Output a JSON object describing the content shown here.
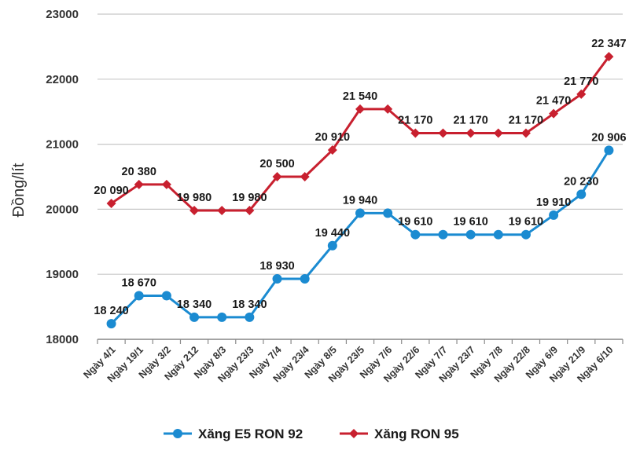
{
  "chart_data": {
    "type": "line",
    "ylabel": "Đồng/lít",
    "xlabel": "",
    "ylim": [
      18000,
      23000
    ],
    "yticks": [
      "18000",
      "19000",
      "20000",
      "21000",
      "22000",
      "23000"
    ],
    "grid": "horizontal",
    "legend_position": "bottom",
    "categories": [
      "Ngày 4/1",
      "Ngày 19/1",
      "Ngày 3/2",
      "Ngày 212",
      "Ngày 8/3",
      "Ngày 23/3",
      "Ngày 7/4",
      "Ngày 23/4",
      "Ngày 8/5",
      "Ngày 23/5",
      "Ngày 7/6",
      "Ngày 22/6",
      "Ngày 7/7",
      "Ngày 23/7",
      "Ngày 7/8",
      "Ngày 22/8",
      "Ngày 6/9",
      "Ngày 21/9",
      "Ngày 6/10"
    ],
    "series": [
      {
        "name": "Xăng E5 RON 92",
        "color": "#1b8bd1",
        "marker": "circle",
        "values": [
          18240,
          18670,
          18670,
          18340,
          18340,
          18340,
          18930,
          18930,
          19440,
          19940,
          19940,
          19610,
          19610,
          19610,
          19610,
          19610,
          19910,
          20230,
          20906
        ],
        "labels": [
          "18 240",
          "18 670",
          "",
          "18 340",
          "",
          "18 340",
          "18 930",
          "",
          "19 440",
          "19 940",
          "",
          "19 610",
          "",
          "19 610",
          "",
          "19 610",
          "19 910",
          "20 230",
          "20 906"
        ]
      },
      {
        "name": "Xăng RON 95",
        "color": "#c8202f",
        "marker": "diamond",
        "values": [
          20090,
          20380,
          20380,
          19980,
          19980,
          19980,
          20500,
          20500,
          20910,
          21540,
          21540,
          21170,
          21170,
          21170,
          21170,
          21170,
          21470,
          21770,
          22347
        ],
        "labels": [
          "20 090",
          "20 380",
          "",
          "19 980",
          "",
          "19 980",
          "20 500",
          "",
          "20 910",
          "21 540",
          "",
          "21 170",
          "",
          "21 170",
          "",
          "21 170",
          "21 470",
          "21 770",
          "22 347"
        ]
      }
    ]
  }
}
